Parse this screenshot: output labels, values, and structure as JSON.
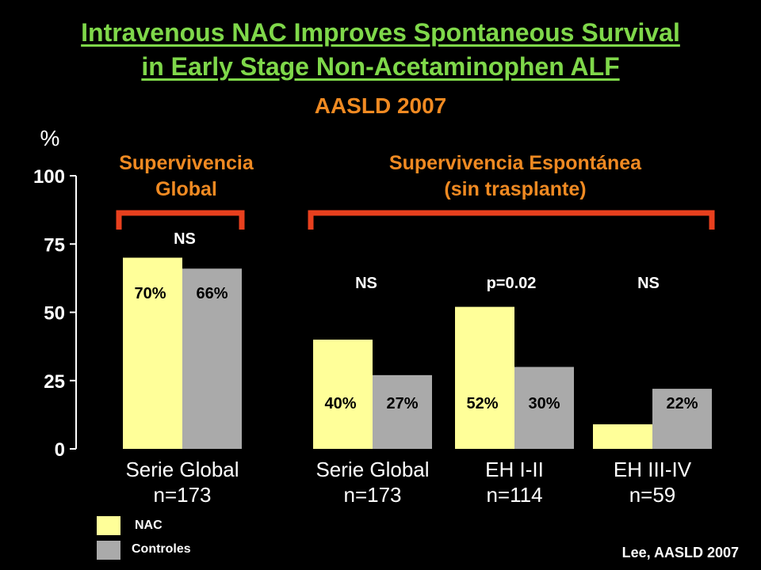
{
  "slide": {
    "title_line1": "Intravenous NAC Improves Spontaneous Survival",
    "title_line2": "in Early Stage Non-Acetaminophen ALF",
    "subtitle": "AASLD 2007",
    "group1_line1": "Supervivencia",
    "group1_line2": "Global",
    "group2_line1": "Supervivencia Espontánea",
    "group2_line2": "(sin trasplante)",
    "source": "Lee, AASLD 2007"
  },
  "colors": {
    "title": "#7fd84a",
    "accent": "#f08a22",
    "bracket": "#e8401e",
    "nac": "#ffff99",
    "controles": "#aaaaaa"
  },
  "legend": [
    {
      "name": "NAC",
      "color": "#ffff99"
    },
    {
      "name": "Controles",
      "color": "#aaaaaa"
    }
  ],
  "chart_data": {
    "type": "bar",
    "ylabel": "%",
    "ylim": [
      0,
      100
    ],
    "yticks": [
      0,
      25,
      50,
      75,
      100
    ],
    "categories": [
      {
        "line1": "Serie Global",
        "line2": "n=173"
      },
      {
        "line1": "Serie Global",
        "line2": "n=173"
      },
      {
        "line1": "EH I-II",
        "line2": "n=114"
      },
      {
        "line1": "EH III-IV",
        "line2": "n=59"
      }
    ],
    "series": [
      {
        "name": "NAC",
        "values": [
          70,
          40,
          52,
          9
        ],
        "labels": [
          "70%",
          "40%",
          "52%",
          "9%"
        ]
      },
      {
        "name": "Controles",
        "values": [
          66,
          27,
          30,
          22
        ],
        "labels": [
          "66%",
          "27%",
          "30%",
          "22%"
        ]
      }
    ],
    "significance": [
      "NS",
      "NS",
      "p=0.02",
      "NS"
    ]
  }
}
